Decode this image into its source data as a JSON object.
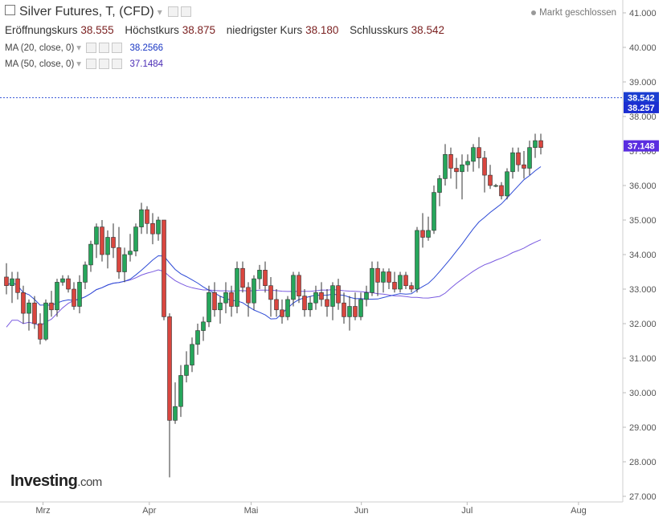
{
  "header": {
    "title": "Silver Futures, T, (CFD)",
    "status": "Markt geschlossen",
    "ohlc": [
      {
        "label": "Eröffnungskurs",
        "value": "38.555"
      },
      {
        "label": "Höchstkurs",
        "value": "38.875"
      },
      {
        "label": "niedrigster Kurs",
        "value": "38.180"
      },
      {
        "label": "Schlusskurs",
        "value": "38.542"
      }
    ],
    "ma": [
      {
        "label": "MA (20, close, 0)",
        "value": "38.2566"
      },
      {
        "label": "MA (50, close, 0)",
        "value": "37.1484"
      }
    ]
  },
  "logo": {
    "brand": "Investing",
    "suffix": ".com"
  },
  "colors": {
    "up": "#26a65b",
    "down": "#d9463f",
    "ma20": "#2e4bd6",
    "ma50": "#7a5be0",
    "last_badge": "#1c3fd1",
    "ma20_badge": "#1c2fd1",
    "ma50_badge": "#5a2ee0"
  },
  "chart_data": {
    "type": "candlestick",
    "title": "Silver Futures, T, (CFD)",
    "xlabel": "",
    "ylabel": "",
    "ylim": [
      26.7,
      41.3
    ],
    "y_ticks": [
      "41.000",
      "40.000",
      "39.000",
      "38.000",
      "37.000",
      "36.000",
      "35.000",
      "34.000",
      "33.000",
      "32.000",
      "31.000",
      "30.000",
      "29.000",
      "28.000",
      "27.000"
    ],
    "x_labels": [
      {
        "label": "Mrz",
        "index": 6.5
      },
      {
        "label": "Apr",
        "index": 25.4
      },
      {
        "label": "Mai",
        "index": 43.5
      },
      {
        "label": "Jun",
        "index": 63.1
      },
      {
        "label": "Jul",
        "index": 81.9
      },
      {
        "label": "Aug",
        "index": 101.7
      }
    ],
    "last_price": "38.542",
    "ma20_last": "38.257",
    "ma50_last": "37.148",
    "candles": [
      [
        33.35,
        33.75,
        32.85,
        33.1
      ],
      [
        33.1,
        33.5,
        32.6,
        33.3
      ],
      [
        33.3,
        33.5,
        32.7,
        32.9
      ],
      [
        32.9,
        33.1,
        32.0,
        32.3
      ],
      [
        32.3,
        32.7,
        31.8,
        32.6
      ],
      [
        32.6,
        32.8,
        31.85,
        32.0
      ],
      [
        32.0,
        32.3,
        31.4,
        31.55
      ],
      [
        31.55,
        32.7,
        31.5,
        32.6
      ],
      [
        32.6,
        32.95,
        32.2,
        32.4
      ],
      [
        32.4,
        33.3,
        32.2,
        33.2
      ],
      [
        33.2,
        33.4,
        33.1,
        33.3
      ],
      [
        33.3,
        33.4,
        32.9,
        33.0
      ],
      [
        33.0,
        33.2,
        32.4,
        32.5
      ],
      [
        32.5,
        33.4,
        32.3,
        33.2
      ],
      [
        33.2,
        33.8,
        33.0,
        33.7
      ],
      [
        33.7,
        34.4,
        33.5,
        34.3
      ],
      [
        34.3,
        34.9,
        33.9,
        34.8
      ],
      [
        34.8,
        35.0,
        33.8,
        34.0
      ],
      [
        34.0,
        34.7,
        33.6,
        34.5
      ],
      [
        34.5,
        34.9,
        33.9,
        34.2
      ],
      [
        34.2,
        34.8,
        33.3,
        33.5
      ],
      [
        33.5,
        34.2,
        33.2,
        34.0
      ],
      [
        34.0,
        34.6,
        33.8,
        34.1
      ],
      [
        34.1,
        34.9,
        33.95,
        34.8
      ],
      [
        34.8,
        35.5,
        34.6,
        35.3
      ],
      [
        35.3,
        35.4,
        34.6,
        34.9
      ],
      [
        34.9,
        35.2,
        34.3,
        34.6
      ],
      [
        34.6,
        35.1,
        34.4,
        35.0
      ],
      [
        35.0,
        35.0,
        32.1,
        32.2
      ],
      [
        32.2,
        32.3,
        27.55,
        29.2
      ],
      [
        29.2,
        30.3,
        29.1,
        29.6
      ],
      [
        29.6,
        30.8,
        29.3,
        30.5
      ],
      [
        30.5,
        31.2,
        30.3,
        30.8
      ],
      [
        30.8,
        31.6,
        30.6,
        31.4
      ],
      [
        31.4,
        32.0,
        31.1,
        31.8
      ],
      [
        31.8,
        32.2,
        31.5,
        32.05
      ],
      [
        32.05,
        33.1,
        31.9,
        32.9
      ],
      [
        32.9,
        33.2,
        32.2,
        32.4
      ],
      [
        32.4,
        32.8,
        32.0,
        32.6
      ],
      [
        32.6,
        33.2,
        32.3,
        32.9
      ],
      [
        32.9,
        33.1,
        32.2,
        32.5
      ],
      [
        32.5,
        33.8,
        32.3,
        33.6
      ],
      [
        33.6,
        33.8,
        32.9,
        33.05
      ],
      [
        33.05,
        33.2,
        32.2,
        32.6
      ],
      [
        32.6,
        33.4,
        32.4,
        33.3
      ],
      [
        33.3,
        33.7,
        33.0,
        33.55
      ],
      [
        33.55,
        33.8,
        32.9,
        33.1
      ],
      [
        33.1,
        33.35,
        32.2,
        32.7
      ],
      [
        32.7,
        33.0,
        32.2,
        32.4
      ],
      [
        32.4,
        32.7,
        32.0,
        32.2
      ],
      [
        32.2,
        32.8,
        32.1,
        32.7
      ],
      [
        32.7,
        33.5,
        32.5,
        33.4
      ],
      [
        33.4,
        33.5,
        32.6,
        32.8
      ],
      [
        32.8,
        33.0,
        32.2,
        32.4
      ],
      [
        32.4,
        32.8,
        32.2,
        32.6
      ],
      [
        32.6,
        33.1,
        32.4,
        32.9
      ],
      [
        32.9,
        33.2,
        32.5,
        32.7
      ],
      [
        32.7,
        33.0,
        32.2,
        32.5
      ],
      [
        32.5,
        33.2,
        32.1,
        33.1
      ],
      [
        33.1,
        33.3,
        32.4,
        32.6
      ],
      [
        32.6,
        32.9,
        32.0,
        32.2
      ],
      [
        32.2,
        32.8,
        31.8,
        32.5
      ],
      [
        32.5,
        32.9,
        32.1,
        32.2
      ],
      [
        32.2,
        32.9,
        32.1,
        32.7
      ],
      [
        32.7,
        33.1,
        32.5,
        32.9
      ],
      [
        32.9,
        33.8,
        32.8,
        33.6
      ],
      [
        33.6,
        33.8,
        32.8,
        33.2
      ],
      [
        33.2,
        33.6,
        32.9,
        33.5
      ],
      [
        33.5,
        33.6,
        33.0,
        33.2
      ],
      [
        33.2,
        33.5,
        32.9,
        33.0
      ],
      [
        33.0,
        33.5,
        32.9,
        33.4
      ],
      [
        33.4,
        33.5,
        33.0,
        33.1
      ],
      [
        33.1,
        33.2,
        32.9,
        33.0
      ],
      [
        33.0,
        34.8,
        32.9,
        34.7
      ],
      [
        34.7,
        35.2,
        34.2,
        34.5
      ],
      [
        34.5,
        35.1,
        34.4,
        34.7
      ],
      [
        34.7,
        36.0,
        34.6,
        35.8
      ],
      [
        35.8,
        36.3,
        35.4,
        36.2
      ],
      [
        36.2,
        37.2,
        36.0,
        36.9
      ],
      [
        36.9,
        37.1,
        36.2,
        36.5
      ],
      [
        36.5,
        36.8,
        35.9,
        36.4
      ],
      [
        36.4,
        36.9,
        35.6,
        36.6
      ],
      [
        36.6,
        36.9,
        36.4,
        36.7
      ],
      [
        36.7,
        37.2,
        36.4,
        37.1
      ],
      [
        37.1,
        37.4,
        36.5,
        36.8
      ],
      [
        36.8,
        37.0,
        35.8,
        36.3
      ],
      [
        36.3,
        36.6,
        35.9,
        36.0
      ],
      [
        36.0,
        36.05,
        35.95,
        36.0
      ],
      [
        36.0,
        36.1,
        35.6,
        35.7
      ],
      [
        35.7,
        36.5,
        35.6,
        36.4
      ],
      [
        36.4,
        37.1,
        36.2,
        36.95
      ],
      [
        36.95,
        37.1,
        36.4,
        36.6
      ],
      [
        36.6,
        37.0,
        36.2,
        36.5
      ],
      [
        36.5,
        37.3,
        36.3,
        37.1
      ],
      [
        37.1,
        37.5,
        36.8,
        37.3
      ],
      [
        37.3,
        37.5,
        36.9,
        37.1
      ]
    ]
  }
}
